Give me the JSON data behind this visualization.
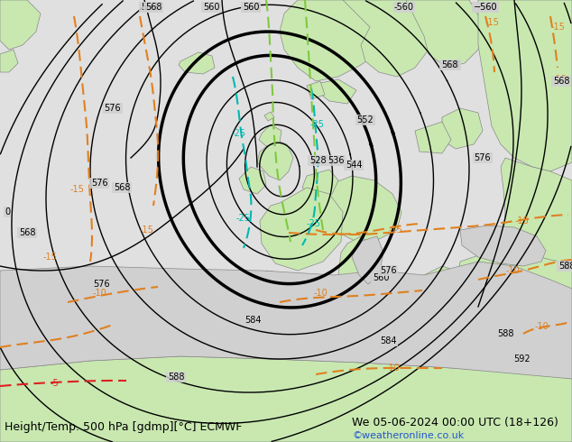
{
  "title_left": "Height/Temp. 500 hPa [gdmp][°C] ECMWF",
  "title_right": "We 05-06-2024 00:00 UTC (18+126)",
  "credit": "©weatheronline.co.uk",
  "bg_color": "#e0e0e0",
  "land_color": "#c8e8b0",
  "sea_color": "#d0d0d0",
  "coast_color": "#888888",
  "fig_width": 6.34,
  "fig_height": 4.9,
  "dpi": 100,
  "black_thin": "#000000",
  "black_thick": "#000000",
  "orange": "#e08020",
  "teal": "#00b8b0",
  "green_lime": "#80c840",
  "red_dash": "#dd2020",
  "title_fs": 9,
  "credit_fs": 8,
  "label_fs": 7
}
